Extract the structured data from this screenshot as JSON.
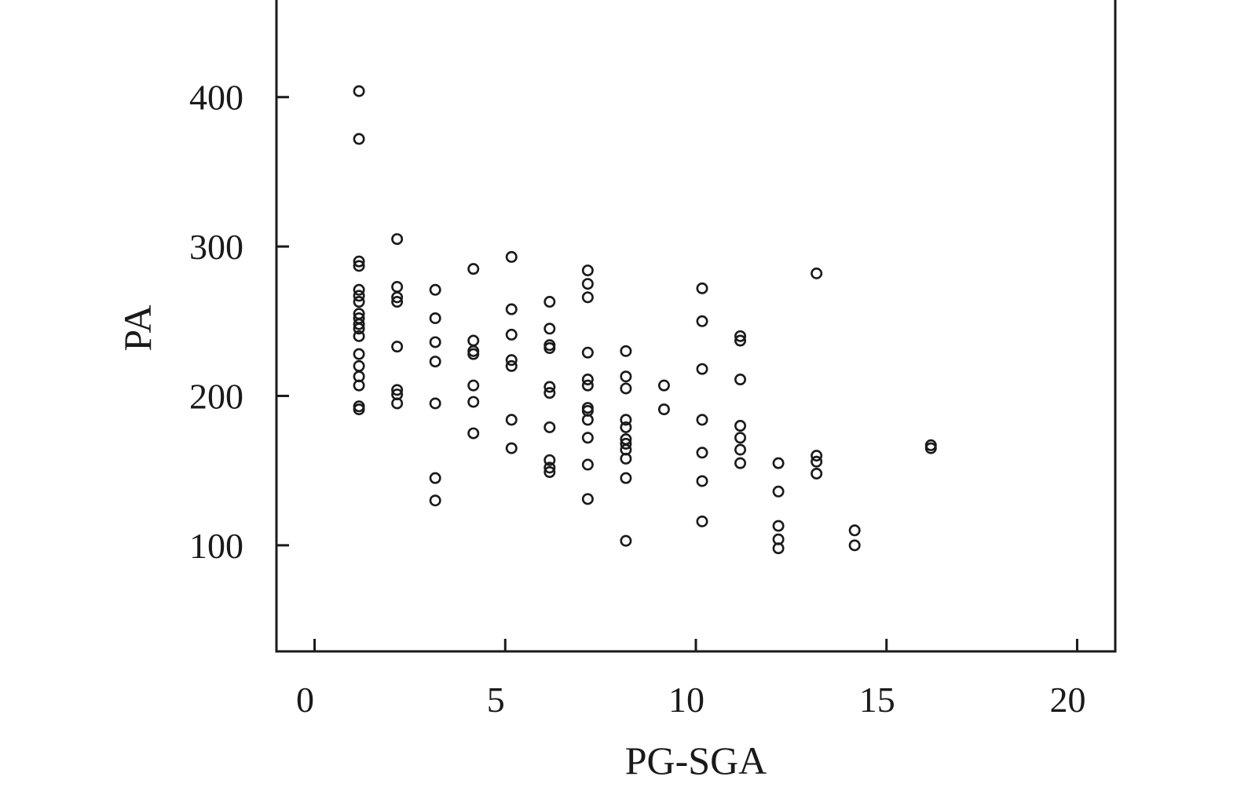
{
  "chart_data": {
    "type": "scatter",
    "title": "",
    "xlabel": "PG-SGA",
    "ylabel": "PA",
    "xlim": [
      -1,
      21
    ],
    "ylim": [
      29,
      465
    ],
    "x_ticks": [
      0,
      5,
      10,
      15,
      20
    ],
    "y_ticks": [
      100,
      200,
      300,
      400
    ],
    "grid": false,
    "legend": "none",
    "marker": "open-circle",
    "color": "#1a1a1a",
    "points": [
      {
        "x": 1,
        "y": 404
      },
      {
        "x": 1,
        "y": 372
      },
      {
        "x": 1,
        "y": 290
      },
      {
        "x": 1,
        "y": 287
      },
      {
        "x": 1,
        "y": 271
      },
      {
        "x": 1,
        "y": 267
      },
      {
        "x": 1,
        "y": 263
      },
      {
        "x": 1,
        "y": 255
      },
      {
        "x": 1,
        "y": 252
      },
      {
        "x": 1,
        "y": 248
      },
      {
        "x": 1,
        "y": 245
      },
      {
        "x": 1,
        "y": 240
      },
      {
        "x": 1,
        "y": 228
      },
      {
        "x": 1,
        "y": 220
      },
      {
        "x": 1,
        "y": 213
      },
      {
        "x": 1,
        "y": 207
      },
      {
        "x": 1,
        "y": 193
      },
      {
        "x": 1,
        "y": 191
      },
      {
        "x": 2,
        "y": 305
      },
      {
        "x": 2,
        "y": 273
      },
      {
        "x": 2,
        "y": 266
      },
      {
        "x": 2,
        "y": 263
      },
      {
        "x": 2,
        "y": 233
      },
      {
        "x": 2,
        "y": 204
      },
      {
        "x": 2,
        "y": 201
      },
      {
        "x": 2,
        "y": 195
      },
      {
        "x": 3,
        "y": 271
      },
      {
        "x": 3,
        "y": 252
      },
      {
        "x": 3,
        "y": 236
      },
      {
        "x": 3,
        "y": 223
      },
      {
        "x": 3,
        "y": 195
      },
      {
        "x": 3,
        "y": 145
      },
      {
        "x": 3,
        "y": 130
      },
      {
        "x": 4,
        "y": 285
      },
      {
        "x": 4,
        "y": 237
      },
      {
        "x": 4,
        "y": 230
      },
      {
        "x": 4,
        "y": 228
      },
      {
        "x": 4,
        "y": 207
      },
      {
        "x": 4,
        "y": 196
      },
      {
        "x": 4,
        "y": 175
      },
      {
        "x": 5,
        "y": 293
      },
      {
        "x": 5,
        "y": 258
      },
      {
        "x": 5,
        "y": 241
      },
      {
        "x": 5,
        "y": 224
      },
      {
        "x": 5,
        "y": 220
      },
      {
        "x": 5,
        "y": 184
      },
      {
        "x": 5,
        "y": 165
      },
      {
        "x": 6,
        "y": 263
      },
      {
        "x": 6,
        "y": 245
      },
      {
        "x": 6,
        "y": 234
      },
      {
        "x": 6,
        "y": 232
      },
      {
        "x": 6,
        "y": 206
      },
      {
        "x": 6,
        "y": 202
      },
      {
        "x": 6,
        "y": 179
      },
      {
        "x": 6,
        "y": 157
      },
      {
        "x": 6,
        "y": 152
      },
      {
        "x": 6,
        "y": 149
      },
      {
        "x": 7,
        "y": 284
      },
      {
        "x": 7,
        "y": 275
      },
      {
        "x": 7,
        "y": 266
      },
      {
        "x": 7,
        "y": 229
      },
      {
        "x": 7,
        "y": 211
      },
      {
        "x": 7,
        "y": 207
      },
      {
        "x": 7,
        "y": 192
      },
      {
        "x": 7,
        "y": 190
      },
      {
        "x": 7,
        "y": 184
      },
      {
        "x": 7,
        "y": 172
      },
      {
        "x": 7,
        "y": 154
      },
      {
        "x": 7,
        "y": 131
      },
      {
        "x": 8,
        "y": 230
      },
      {
        "x": 8,
        "y": 213
      },
      {
        "x": 8,
        "y": 205
      },
      {
        "x": 8,
        "y": 184
      },
      {
        "x": 8,
        "y": 179
      },
      {
        "x": 8,
        "y": 171
      },
      {
        "x": 8,
        "y": 168
      },
      {
        "x": 8,
        "y": 164
      },
      {
        "x": 8,
        "y": 158
      },
      {
        "x": 8,
        "y": 145
      },
      {
        "x": 8,
        "y": 103
      },
      {
        "x": 9,
        "y": 207
      },
      {
        "x": 9,
        "y": 191
      },
      {
        "x": 10,
        "y": 272
      },
      {
        "x": 10,
        "y": 250
      },
      {
        "x": 10,
        "y": 218
      },
      {
        "x": 10,
        "y": 184
      },
      {
        "x": 10,
        "y": 162
      },
      {
        "x": 10,
        "y": 143
      },
      {
        "x": 10,
        "y": 116
      },
      {
        "x": 11,
        "y": 240
      },
      {
        "x": 11,
        "y": 237
      },
      {
        "x": 11,
        "y": 211
      },
      {
        "x": 11,
        "y": 180
      },
      {
        "x": 11,
        "y": 172
      },
      {
        "x": 11,
        "y": 164
      },
      {
        "x": 11,
        "y": 155
      },
      {
        "x": 12,
        "y": 155
      },
      {
        "x": 12,
        "y": 136
      },
      {
        "x": 12,
        "y": 113
      },
      {
        "x": 12,
        "y": 104
      },
      {
        "x": 12,
        "y": 98
      },
      {
        "x": 13,
        "y": 282
      },
      {
        "x": 13,
        "y": 160
      },
      {
        "x": 13,
        "y": 156
      },
      {
        "x": 13,
        "y": 148
      },
      {
        "x": 14,
        "y": 110
      },
      {
        "x": 14,
        "y": 100
      },
      {
        "x": 16,
        "y": 167
      },
      {
        "x": 16,
        "y": 165
      }
    ]
  }
}
